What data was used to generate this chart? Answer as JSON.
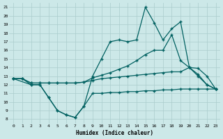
{
  "xlabel": "Humidex (Indice chaleur)",
  "xlim": [
    -0.5,
    23.5
  ],
  "ylim": [
    7.5,
    21.5
  ],
  "xticks": [
    0,
    1,
    2,
    3,
    4,
    5,
    6,
    7,
    8,
    9,
    10,
    11,
    12,
    13,
    14,
    15,
    16,
    17,
    18,
    19,
    20,
    21,
    22,
    23
  ],
  "yticks": [
    8,
    9,
    10,
    11,
    12,
    13,
    14,
    15,
    16,
    17,
    18,
    19,
    20,
    21
  ],
  "bg_color": "#cce8e8",
  "grid_color": "#aacccc",
  "line_color": "#006060",
  "curve1_x": [
    0,
    1,
    2,
    3,
    4,
    5,
    6,
    7,
    8,
    9,
    10,
    11,
    12,
    13,
    14,
    15,
    16,
    17,
    18,
    19,
    20,
    21,
    22,
    23
  ],
  "curve1_y": [
    12.7,
    12.7,
    12.0,
    12.0,
    10.5,
    9.0,
    8.5,
    8.2,
    9.5,
    11.0,
    11.0,
    11.1,
    11.1,
    11.2,
    11.2,
    11.3,
    11.3,
    11.4,
    11.4,
    11.5,
    11.5,
    11.5,
    11.5,
    11.5
  ],
  "curve2_x": [
    0,
    1,
    2,
    3,
    4,
    5,
    6,
    7,
    8,
    9,
    10,
    11,
    12,
    13,
    14,
    15,
    16,
    17,
    18,
    19,
    20,
    21,
    22,
    23
  ],
  "curve2_y": [
    12.7,
    12.7,
    12.2,
    12.2,
    12.2,
    12.2,
    12.2,
    12.2,
    12.3,
    12.5,
    12.7,
    12.8,
    12.9,
    13.0,
    13.1,
    13.2,
    13.3,
    13.4,
    13.5,
    13.5,
    14.0,
    13.9,
    13.0,
    11.5
  ],
  "curve3_x": [
    0,
    1,
    2,
    3,
    4,
    5,
    6,
    7,
    8,
    9,
    10,
    11,
    12,
    13,
    14,
    15,
    16,
    17,
    18,
    19,
    20,
    21,
    22,
    23
  ],
  "curve3_y": [
    12.7,
    12.7,
    12.2,
    12.2,
    12.2,
    12.2,
    12.2,
    12.2,
    12.3,
    12.8,
    13.1,
    13.4,
    13.8,
    14.2,
    14.8,
    15.5,
    16.0,
    16.0,
    17.8,
    14.8,
    14.0,
    13.0,
    12.0,
    11.5
  ],
  "curve4_x": [
    0,
    2,
    3,
    4,
    5,
    6,
    7,
    8,
    9,
    10,
    11,
    12,
    13,
    14,
    15,
    16,
    17,
    18,
    19,
    20,
    21,
    22,
    23
  ],
  "curve4_y": [
    12.7,
    12.0,
    12.0,
    10.5,
    9.0,
    8.5,
    8.2,
    9.5,
    13.0,
    15.0,
    17.0,
    17.2,
    17.0,
    17.2,
    21.0,
    19.2,
    17.2,
    18.5,
    19.3,
    14.0,
    13.2,
    12.0,
    11.5
  ]
}
